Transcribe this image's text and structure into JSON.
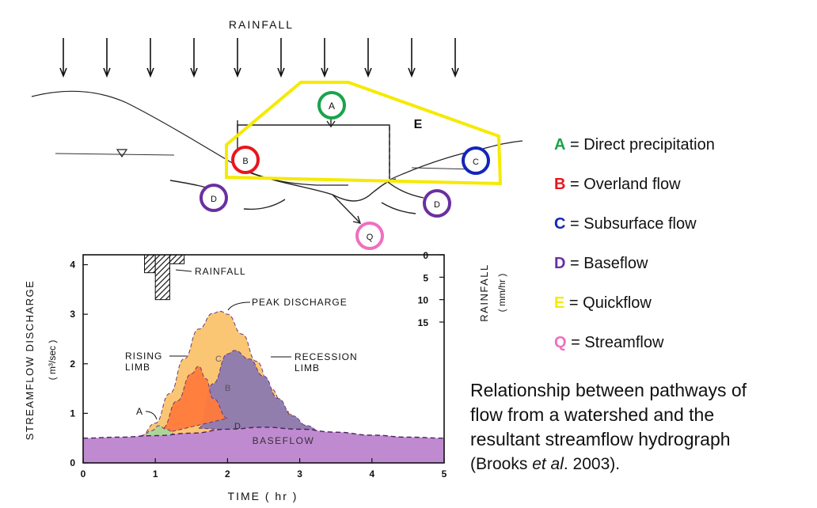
{
  "top_diagram": {
    "rainfall_label": "RAINFALL",
    "quickflow_label": "E",
    "circle_labels": {
      "A": "A",
      "B": "B",
      "C": "C",
      "D_left": "D",
      "D_right": "D",
      "Q": "Q"
    },
    "colors": {
      "A": "#1aa34a",
      "B": "#e8161b",
      "C": "#1326b8",
      "D": "#6b2fa0",
      "E": "#f5ea00",
      "Q": "#ef6fc0"
    }
  },
  "legend": [
    {
      "letter": "A",
      "text": " = Direct precipitation",
      "color": "#1aa34a"
    },
    {
      "letter": "B",
      "text": " = Overland flow",
      "color": "#e8161b"
    },
    {
      "letter": "C",
      "text": " = Subsurface flow",
      "color": "#1326b8"
    },
    {
      "letter": "D",
      "text": " = Baseflow",
      "color": "#6b2fa0"
    },
    {
      "letter": "E",
      "text": " = Quickflow",
      "color": "#f5ea00"
    },
    {
      "letter": "Q",
      "text": " = Streamflow",
      "color": "#ef6fc0"
    }
  ],
  "caption": {
    "text_lines": [
      "Relationship between pathways of",
      "flow from a watershed and the",
      "resultant streamflow hydrograph"
    ],
    "cite_prefix": "(Brooks ",
    "cite_italic": "et al",
    "cite_suffix": ". 2003)."
  },
  "chart_data": {
    "type": "area",
    "xlabel": "TIME ( hr )",
    "ylabel": "STREAMFLOW DISCHARGE",
    "ylabel_units": "( m³/sec )",
    "y2label": "RAINFALL",
    "y2label_units": "( mm/hr )",
    "xlim": [
      0,
      5
    ],
    "ylim": [
      0,
      4.2
    ],
    "y2lim": [
      0,
      15
    ],
    "x_ticks": [
      "0",
      "1",
      "2",
      "3",
      "4",
      "5"
    ],
    "y_ticks": [
      "0",
      "1",
      "2",
      "3",
      "4"
    ],
    "y2_ticks": [
      "0",
      "5",
      "10",
      "15"
    ],
    "annotations": {
      "rainfall": "RAINFALL",
      "peak": "PEAK DISCHARGE",
      "rising": [
        "RISING",
        "LIMB"
      ],
      "recession": [
        "RECESSION",
        "LIMB"
      ],
      "baseflow": "BASEFLOW",
      "A": "A",
      "B": "B",
      "C": "C",
      "D": "D"
    },
    "rainfall_hyetograph": [
      {
        "x0": 0.85,
        "x1": 1.0,
        "rate": 4
      },
      {
        "x0": 1.0,
        "x1": 1.2,
        "rate": 10
      },
      {
        "x0": 1.2,
        "x1": 1.4,
        "rate": 2
      }
    ],
    "series": [
      {
        "name": "Quickflow",
        "color": "#fbc36b",
        "x": [
          0.8,
          1.0,
          1.2,
          1.4,
          1.6,
          1.8,
          1.9,
          2.0,
          2.2,
          2.4,
          2.6,
          2.8,
          3.0,
          3.2,
          3.4,
          3.6
        ],
        "y": [
          0.55,
          0.8,
          1.4,
          2.1,
          2.7,
          3.02,
          3.06,
          3.0,
          2.6,
          2.05,
          1.5,
          1.05,
          0.8,
          0.65,
          0.58,
          0.55
        ]
      },
      {
        "name": "Subsurface flow",
        "color": "#8b7ab0",
        "x": [
          1.6,
          1.8,
          2.0,
          2.1,
          2.3,
          2.5,
          2.7,
          2.9,
          3.1,
          3.3,
          3.5
        ],
        "y": [
          0.7,
          1.6,
          2.2,
          2.27,
          2.1,
          1.75,
          1.3,
          0.95,
          0.75,
          0.62,
          0.56
        ]
      },
      {
        "name": "Overland flow",
        "color": "#ff7b3b",
        "x": [
          0.9,
          1.1,
          1.3,
          1.5,
          1.6,
          1.7,
          1.8,
          2.0
        ],
        "y": [
          0.52,
          0.7,
          1.25,
          1.8,
          1.95,
          1.7,
          1.3,
          0.9
        ]
      },
      {
        "name": "Direct precipitation",
        "color": "#a9d99a",
        "x": [
          0.8,
          0.95,
          1.05,
          1.15,
          1.3
        ],
        "y": [
          0.52,
          0.65,
          0.75,
          0.68,
          0.55
        ]
      },
      {
        "name": "Baseflow",
        "color": "#c08ad0",
        "x": [
          0.0,
          0.5,
          1.0,
          1.5,
          2.0,
          2.5,
          3.0,
          3.5,
          4.0,
          4.5,
          5.0
        ],
        "y": [
          0.5,
          0.52,
          0.55,
          0.6,
          0.68,
          0.72,
          0.68,
          0.62,
          0.56,
          0.52,
          0.5
        ]
      }
    ]
  }
}
